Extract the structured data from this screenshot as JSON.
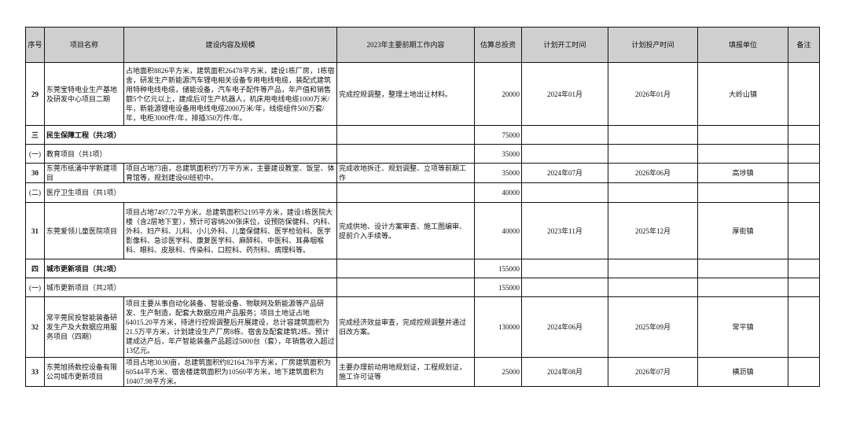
{
  "headers": [
    "序号",
    "项目名称",
    "建设内容及规模",
    "2023年主要前期工作内容",
    "估算总投资",
    "计划开工时间",
    "计划投产时间",
    "填报单位",
    "备注"
  ],
  "rows": [
    {
      "type": "item",
      "no": "29",
      "name": "东莞宝特电业生产基地及研发中心项目二期",
      "content": "占地面积8826平方米，建筑面积26478平方米，建设1栋厂房，1栋宿舍，研发生产新能源汽车锂电相关设备专用电线电缆，装配式建筑用特种电线电缆，储能设备，汽车电子配件等产品，年产值和销售额5个亿元以上，建成后可生产机器人，机床用电线电缆1000万米/年，新能源锂电设备用电线电缆2000万米/年，线缆组件500万套/年，电柜3000件/年，排插350万件/年。",
      "work": "完成控规调整，整理土地出让材料。",
      "invest": "20000",
      "start": "2024年01月",
      "end": "2026年01月",
      "unit": "大岭山镇",
      "note": ""
    },
    {
      "type": "section",
      "no": "三",
      "name": "民生保障工程（共2项）",
      "invest": "75000"
    },
    {
      "type": "sub",
      "no": "(一)",
      "name": "教育项目（共1项）",
      "invest": "35000"
    },
    {
      "type": "item",
      "no": "30",
      "name": "东莞市纸涌中学新建项目",
      "content": "项目占地73亩，总建筑面积约7万平方米，主要建设教室、饭堂、体育馆等，规划建设60班初中。",
      "work": "完成收地拆迁、规划调整、立项等前期工作",
      "invest": "35000",
      "start": "2024年07月",
      "end": "2026年06月",
      "unit": "高埗镇",
      "note": ""
    },
    {
      "type": "sub",
      "no": "(二)",
      "name": "医疗卫生项目（共1项）",
      "invest": "40000"
    },
    {
      "type": "item",
      "no": "31",
      "name": "东莞爱领儿童医院项目",
      "content": "项目占地7497.72平方米，总建筑面积52195平方米，建设1栋医院大楼（含2层地下室），预计可容纳200张床位，设预防保健科、内科、外科、妇产科、儿科、小儿外科、儿童保健科、医学检验科、医学影像科、急诊医学科、康复医学科、麻醉科、中医科、耳鼻咽喉科、眼科、皮肤科、传染科、口腔科、药剂科、病理科等。",
      "work": "完成供地、设计方案审查、施工图编审、提前介入手续等。",
      "invest": "40000",
      "start": "2023年11月",
      "end": "2025年12月",
      "unit": "厚街镇",
      "note": ""
    },
    {
      "type": "section",
      "no": "四",
      "name": "城市更新项目（共2项）",
      "invest": "155000"
    },
    {
      "type": "sub",
      "no": "(一)",
      "name": "城市更新项目（共2项）",
      "invest": "155000"
    },
    {
      "type": "item",
      "no": "32",
      "name": "常平莞民投智能装备研发生产及大数据应用服务项目（四期）",
      "content": "项目主要从事自动化装备、智能设备、物联网及新能源等产品研发、生产制造，配套大数据应用产品服务；项目土地证占地64015.20平方米，待进行控规调整后开展建设，总计容建筑面积为21.5万平方米，计划建设生产厂房8栋、宿舍及配套建筑2栋。预计建成达产后，年产智能装备产品超过5000台（套），年销售收入超过13亿元。",
      "work": "完成经济效益审查，完成控规调整并通过旧改方案。",
      "invest": "130000",
      "start": "2024年06月",
      "end": "2025年09月",
      "unit": "常平镇",
      "note": ""
    },
    {
      "type": "item",
      "no": "33",
      "name": "东莞旭扬数控设备有限公司城市更新项目",
      "content": "项目占地30.90亩，总建筑面积约82164.78平方米，厂房建筑面积为60544平方米、宿舍楼建筑面积为10560平方米，地下建筑面积为10407.98平方米。",
      "work": "主要办理前动用地规划证，工程规划证，施工许可证等",
      "invest": "25000",
      "start": "2024年08月",
      "end": "2026年07月",
      "unit": "横沥镇",
      "note": ""
    }
  ]
}
